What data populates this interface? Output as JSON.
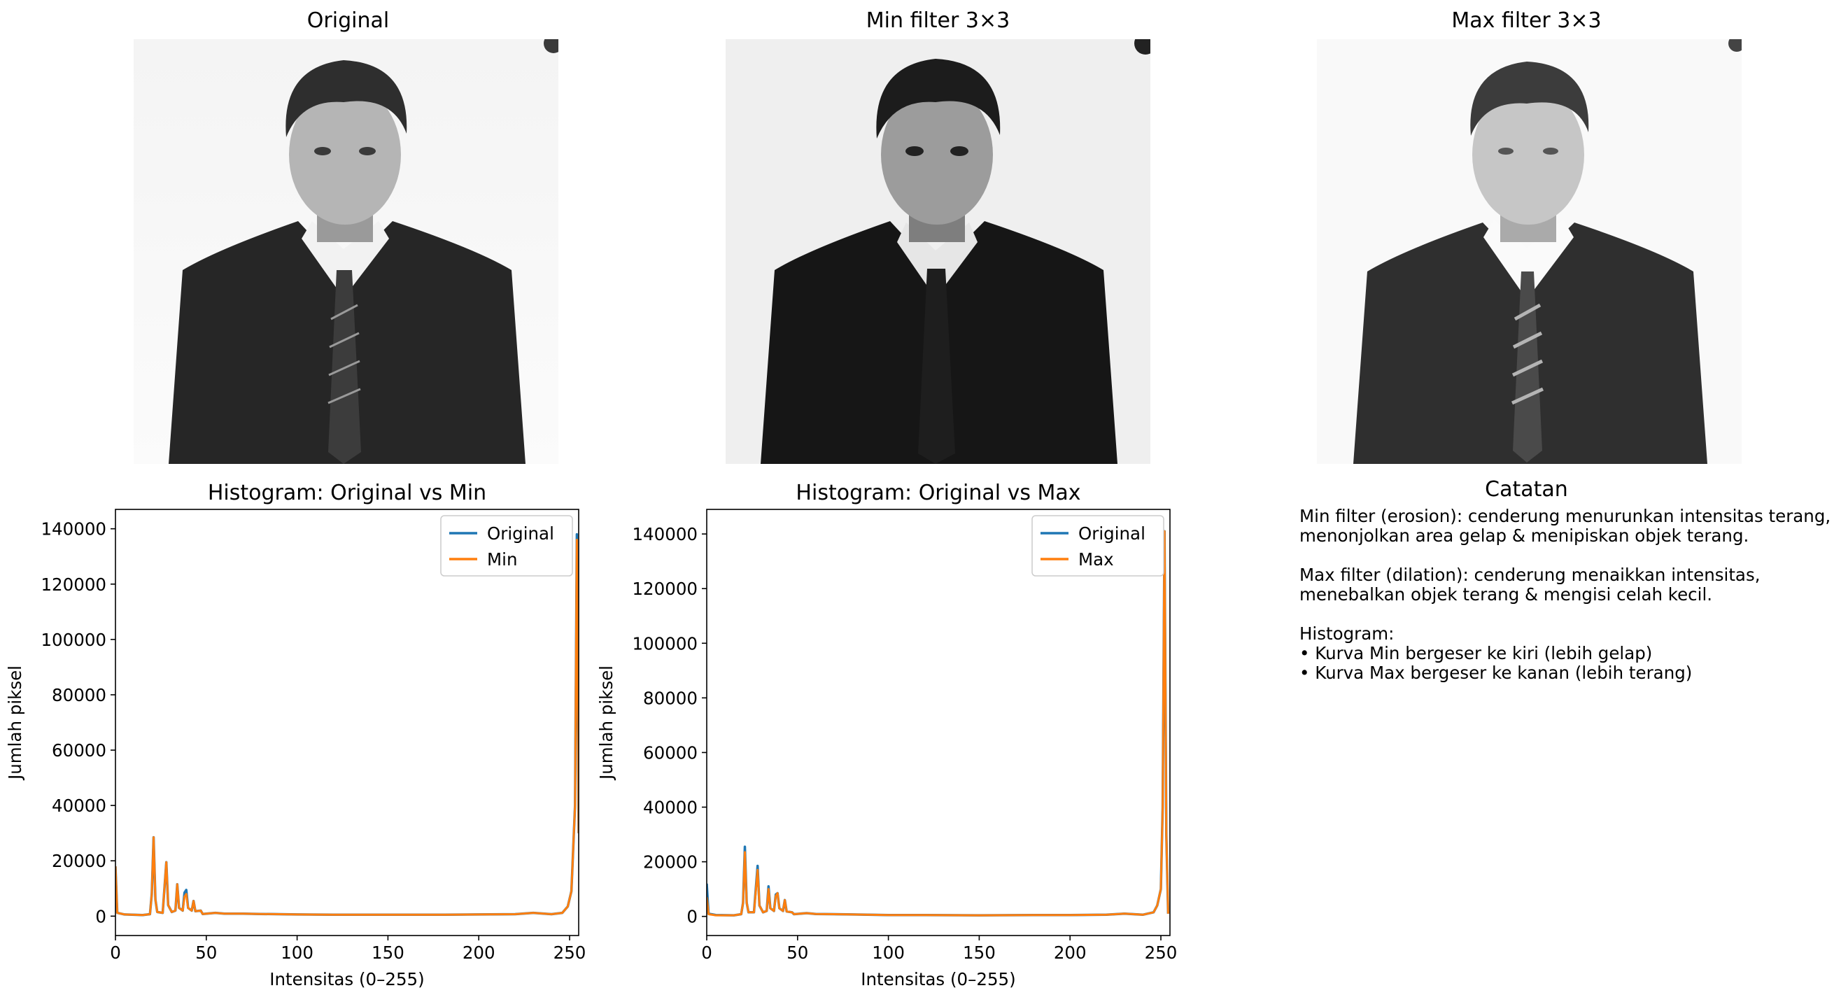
{
  "panels": {
    "original_title": "Original",
    "min_title": "Min filter 3×3",
    "max_title": "Max filter 3×3",
    "notes_title": "Catatan"
  },
  "notes": {
    "lines": [
      "Min filter (erosion): cenderung menurunkan intensitas terang,",
      "menonjolkan area gelap & menipiskan objek terang.",
      "",
      "Max filter (dilation): cenderung menaikkan intensitas,",
      "menebalkan objek terang & mengisi celah kecil.",
      "",
      "Histogram:",
      "• Kurva Min bergeser ke kiri (lebih gelap)",
      "• Kurva Max bergeser ke kanan (lebih terang)"
    ]
  },
  "colors": {
    "original": "#1f77b4",
    "filtered": "#ff7f0e"
  },
  "chart_data": [
    {
      "type": "line",
      "title": "Histogram: Original vs Min",
      "xlabel": "Intensitas (0–255)",
      "ylabel": "Jumlah piksel",
      "xlim": [
        0,
        255
      ],
      "ylim": [
        -7000,
        147000
      ],
      "xticks": [
        0,
        50,
        100,
        150,
        200,
        250
      ],
      "yticks": [
        0,
        20000,
        40000,
        60000,
        80000,
        100000,
        120000,
        140000
      ],
      "legend_position": "top-right",
      "series": [
        {
          "name": "Original",
          "points": [
            [
              0,
              18000
            ],
            [
              1,
              1200
            ],
            [
              5,
              600
            ],
            [
              15,
              400
            ],
            [
              19,
              700
            ],
            [
              20,
              8000
            ],
            [
              21,
              28500
            ],
            [
              22,
              6000
            ],
            [
              23,
              1500
            ],
            [
              26,
              1200
            ],
            [
              28,
              19500
            ],
            [
              29,
              4000
            ],
            [
              31,
              1500
            ],
            [
              33,
              2000
            ],
            [
              34,
              11500
            ],
            [
              35,
              3000
            ],
            [
              37,
              2000
            ],
            [
              38,
              8500
            ],
            [
              39,
              9500
            ],
            [
              40,
              3000
            ],
            [
              42,
              2000
            ],
            [
              43,
              5500
            ],
            [
              44,
              1800
            ],
            [
              47,
              2000
            ],
            [
              48,
              800
            ],
            [
              55,
              1200
            ],
            [
              60,
              900
            ],
            [
              70,
              900
            ],
            [
              80,
              800
            ],
            [
              100,
              600
            ],
            [
              120,
              500
            ],
            [
              150,
              500
            ],
            [
              180,
              500
            ],
            [
              200,
              600
            ],
            [
              220,
              700
            ],
            [
              230,
              1200
            ],
            [
              240,
              700
            ],
            [
              246,
              1200
            ],
            [
              249,
              3500
            ],
            [
              251,
              9000
            ],
            [
              253,
              40000
            ],
            [
              254,
              138000
            ],
            [
              255,
              30000
            ]
          ]
        },
        {
          "name": "Min",
          "points": [
            [
              0,
              18000
            ],
            [
              1,
              1200
            ],
            [
              5,
              600
            ],
            [
              15,
              400
            ],
            [
              19,
              700
            ],
            [
              20,
              8000
            ],
            [
              21,
              28500
            ],
            [
              22,
              6000
            ],
            [
              23,
              1500
            ],
            [
              26,
              1200
            ],
            [
              28,
              19500
            ],
            [
              29,
              4000
            ],
            [
              31,
              1500
            ],
            [
              33,
              2000
            ],
            [
              34,
              11500
            ],
            [
              35,
              3000
            ],
            [
              37,
              2000
            ],
            [
              38,
              7000
            ],
            [
              39,
              8000
            ],
            [
              40,
              3000
            ],
            [
              42,
              2000
            ],
            [
              43,
              5500
            ],
            [
              44,
              1800
            ],
            [
              47,
              2000
            ],
            [
              48,
              800
            ],
            [
              55,
              1200
            ],
            [
              60,
              900
            ],
            [
              70,
              900
            ],
            [
              80,
              800
            ],
            [
              100,
              600
            ],
            [
              120,
              500
            ],
            [
              150,
              500
            ],
            [
              180,
              500
            ],
            [
              200,
              600
            ],
            [
              220,
              700
            ],
            [
              230,
              1200
            ],
            [
              240,
              700
            ],
            [
              246,
              1200
            ],
            [
              249,
              3500
            ],
            [
              251,
              9000
            ],
            [
              253,
              40000
            ],
            [
              254,
              136000
            ],
            [
              255,
              30000
            ]
          ]
        }
      ]
    },
    {
      "type": "line",
      "title": "Histogram: Original vs Max",
      "xlabel": "Intensitas (0–255)",
      "ylabel": "Jumlah piksel",
      "xlim": [
        0,
        255
      ],
      "ylim": [
        -7000,
        149000
      ],
      "xticks": [
        0,
        50,
        100,
        150,
        200,
        250
      ],
      "yticks": [
        0,
        20000,
        40000,
        60000,
        80000,
        100000,
        120000,
        140000
      ],
      "legend_position": "top-right",
      "series": [
        {
          "name": "Original",
          "points": [
            [
              0,
              12000
            ],
            [
              1,
              1000
            ],
            [
              5,
              500
            ],
            [
              15,
              400
            ],
            [
              19,
              800
            ],
            [
              20,
              5000
            ],
            [
              21,
              25500
            ],
            [
              22,
              5000
            ],
            [
              23,
              1500
            ],
            [
              26,
              1500
            ],
            [
              28,
              18500
            ],
            [
              29,
              4000
            ],
            [
              31,
              1500
            ],
            [
              33,
              2000
            ],
            [
              34,
              11000
            ],
            [
              35,
              3000
            ],
            [
              37,
              2000
            ],
            [
              38,
              8000
            ],
            [
              39,
              8500
            ],
            [
              40,
              3000
            ],
            [
              42,
              2000
            ],
            [
              43,
              6000
            ],
            [
              44,
              1800
            ],
            [
              47,
              1500
            ],
            [
              48,
              800
            ],
            [
              55,
              1200
            ],
            [
              60,
              900
            ],
            [
              70,
              800
            ],
            [
              80,
              700
            ],
            [
              100,
              500
            ],
            [
              120,
              500
            ],
            [
              150,
              400
            ],
            [
              180,
              500
            ],
            [
              200,
              500
            ],
            [
              220,
              600
            ],
            [
              230,
              1000
            ],
            [
              240,
              600
            ],
            [
              246,
              1500
            ],
            [
              248,
              4000
            ],
            [
              250,
              10000
            ],
            [
              251,
              40000
            ],
            [
              252,
              141000
            ],
            [
              253,
              30000
            ],
            [
              254,
              1000
            ]
          ]
        },
        {
          "name": "Max",
          "points": [
            [
              0,
              7000
            ],
            [
              1,
              800
            ],
            [
              5,
              400
            ],
            [
              15,
              400
            ],
            [
              19,
              800
            ],
            [
              20,
              5000
            ],
            [
              21,
              23500
            ],
            [
              22,
              5000
            ],
            [
              23,
              1500
            ],
            [
              26,
              1500
            ],
            [
              28,
              17000
            ],
            [
              29,
              4000
            ],
            [
              31,
              1500
            ],
            [
              33,
              2000
            ],
            [
              34,
              10000
            ],
            [
              35,
              3000
            ],
            [
              37,
              2000
            ],
            [
              38,
              7500
            ],
            [
              39,
              8500
            ],
            [
              40,
              3000
            ],
            [
              42,
              2000
            ],
            [
              43,
              6000
            ],
            [
              44,
              1800
            ],
            [
              47,
              1500
            ],
            [
              48,
              800
            ],
            [
              55,
              1200
            ],
            [
              60,
              900
            ],
            [
              70,
              800
            ],
            [
              80,
              700
            ],
            [
              100,
              500
            ],
            [
              120,
              500
            ],
            [
              150,
              400
            ],
            [
              180,
              500
            ],
            [
              200,
              500
            ],
            [
              220,
              600
            ],
            [
              230,
              1000
            ],
            [
              240,
              600
            ],
            [
              246,
              1500
            ],
            [
              248,
              4000
            ],
            [
              250,
              10000
            ],
            [
              251,
              40000
            ],
            [
              252,
              141000
            ],
            [
              253,
              30000
            ],
            [
              254,
              1000
            ]
          ]
        }
      ]
    }
  ]
}
